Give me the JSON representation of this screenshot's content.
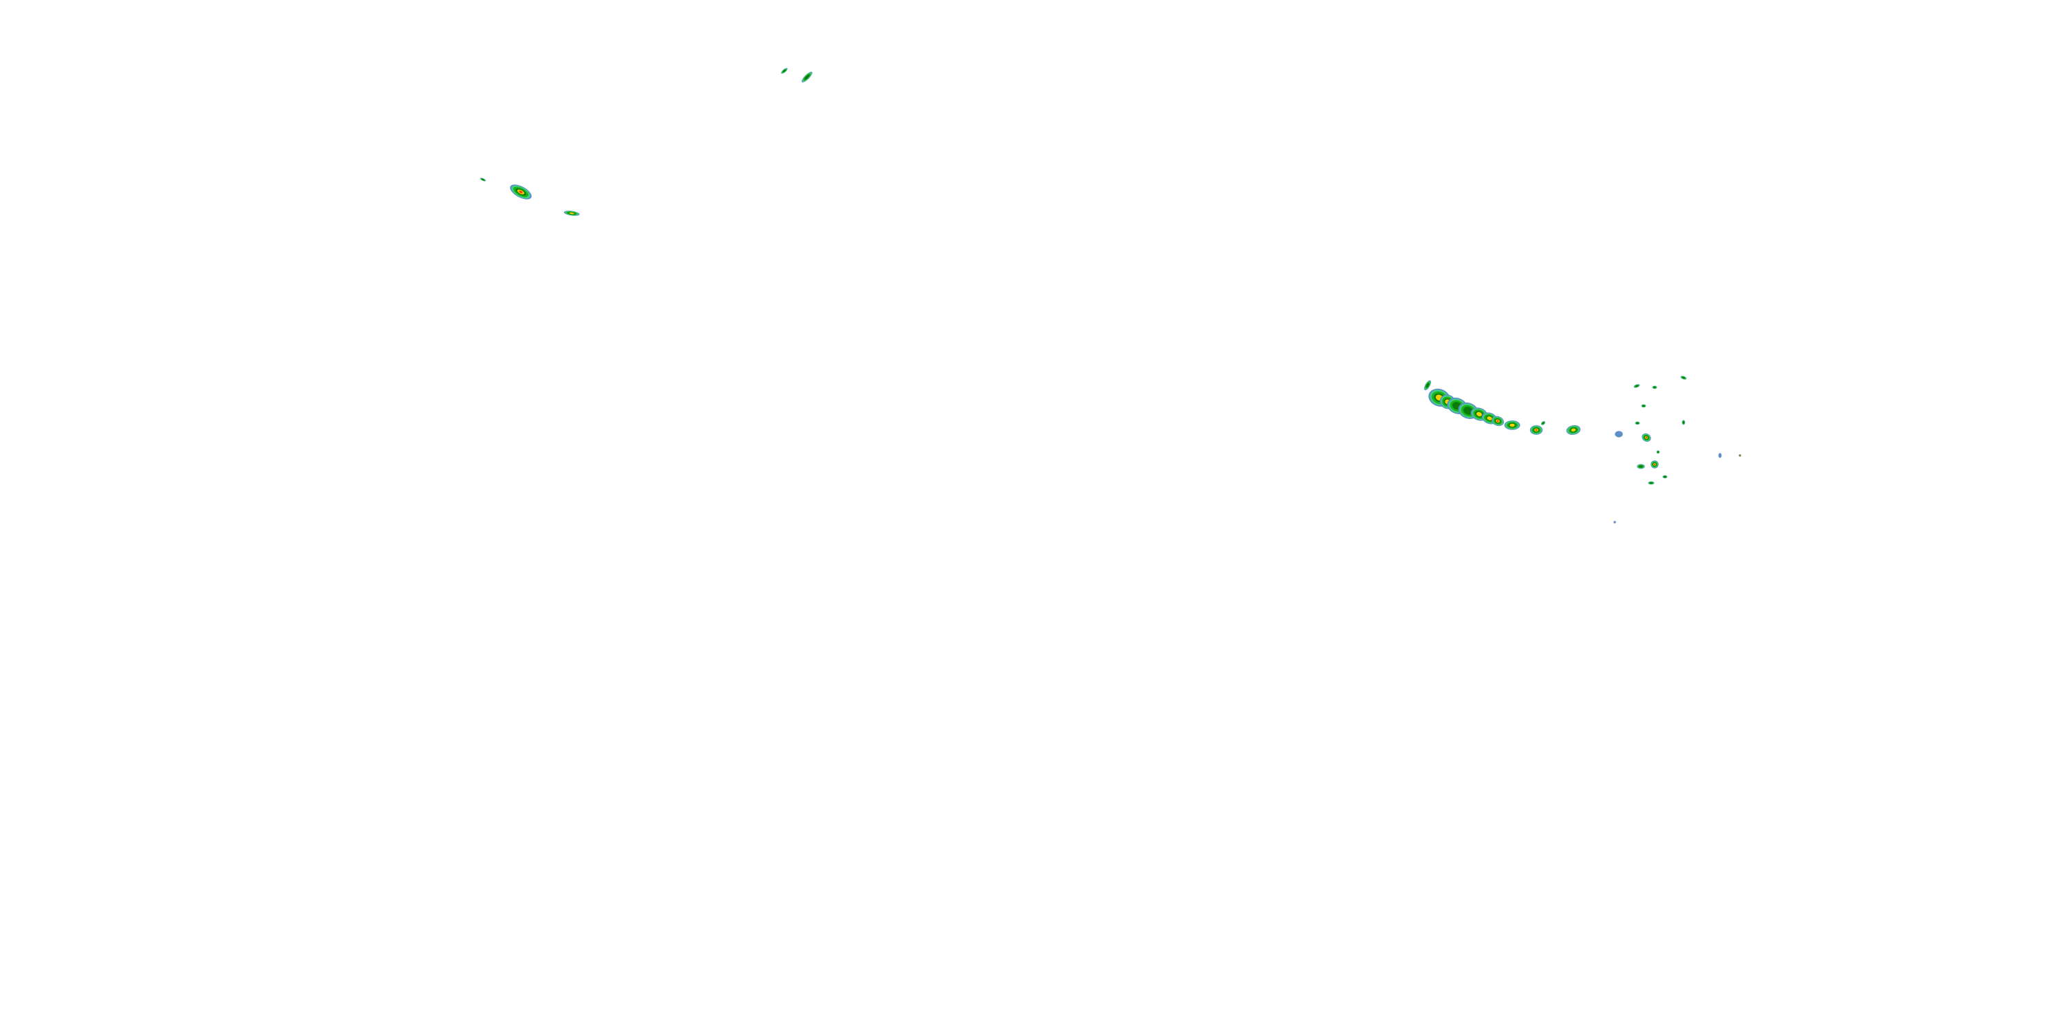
{
  "map": {
    "layer": "radar-reflectivity-overlay",
    "background": "#ffffff",
    "palette": {
      "light_blue": "#5f8fc7",
      "cyan_green": "#3fd17f",
      "green": "#19b319",
      "dark_green": "#0a7a0a",
      "yellow": "#f5d000",
      "orange": "#f59a00",
      "red": "#e8161b"
    }
  }
}
